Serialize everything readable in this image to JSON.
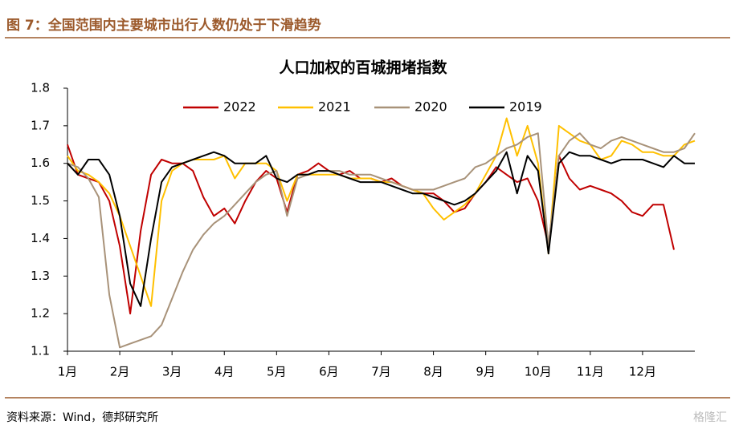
{
  "header": {
    "title": "图 7：全国范围内主要城市出行人数仍处于下滑趋势"
  },
  "chart_data": {
    "type": "line",
    "title": "人口加权的百城拥堵指数",
    "x": [
      0,
      0.2,
      0.4,
      0.6,
      0.8,
      1,
      1.2,
      1.4,
      1.6,
      1.8,
      2,
      2.2,
      2.4,
      2.6,
      2.8,
      3,
      3.2,
      3.4,
      3.6,
      3.8,
      4,
      4.2,
      4.4,
      4.6,
      4.8,
      5,
      5.2,
      5.4,
      5.6,
      5.8,
      6,
      6.2,
      6.4,
      6.6,
      6.8,
      7,
      7.2,
      7.4,
      7.6,
      7.8,
      8,
      8.2,
      8.4,
      8.6,
      8.8,
      9,
      9.2,
      9.4,
      9.6,
      9.8,
      10,
      10.2,
      10.4,
      10.6,
      10.8,
      11,
      11.2,
      11.4,
      11.6,
      11.8,
      12
    ],
    "xlim": [
      0,
      12
    ],
    "xticks": [
      {
        "value": 0,
        "label": "1月"
      },
      {
        "value": 1,
        "label": "2月"
      },
      {
        "value": 2,
        "label": "3月"
      },
      {
        "value": 3,
        "label": "4月"
      },
      {
        "value": 4,
        "label": "5月"
      },
      {
        "value": 5,
        "label": "6月"
      },
      {
        "value": 6,
        "label": "7月"
      },
      {
        "value": 7,
        "label": "8月"
      },
      {
        "value": 8,
        "label": "9月"
      },
      {
        "value": 9,
        "label": "10月"
      },
      {
        "value": 10,
        "label": "11月"
      },
      {
        "value": 11,
        "label": "12月"
      }
    ],
    "ylim": [
      1.1,
      1.8
    ],
    "yticks": [
      1.1,
      1.2,
      1.3,
      1.4,
      1.5,
      1.6,
      1.7,
      1.8
    ],
    "series": [
      {
        "name": "2022",
        "color": "#c00000",
        "values": [
          1.65,
          1.57,
          1.56,
          1.55,
          1.5,
          1.38,
          1.2,
          1.42,
          1.57,
          1.61,
          1.6,
          1.6,
          1.58,
          1.51,
          1.46,
          1.48,
          1.44,
          1.5,
          1.55,
          1.58,
          1.56,
          1.47,
          1.57,
          1.58,
          1.6,
          1.58,
          1.57,
          1.58,
          1.56,
          1.56,
          1.55,
          1.56,
          1.54,
          1.53,
          1.52,
          1.52,
          1.5,
          1.47,
          1.48,
          1.52,
          1.55,
          1.59,
          1.57,
          1.55,
          1.56,
          1.5,
          1.38,
          1.62,
          1.56,
          1.53,
          1.54,
          1.53,
          1.52,
          1.5,
          1.47,
          1.46,
          1.49,
          1.49,
          1.37,
          null,
          null
        ]
      },
      {
        "name": "2021",
        "color": "#ffc000",
        "values": [
          1.62,
          1.58,
          1.57,
          1.55,
          1.52,
          1.46,
          1.38,
          1.3,
          1.22,
          1.5,
          1.58,
          1.6,
          1.61,
          1.61,
          1.61,
          1.62,
          1.56,
          1.6,
          1.6,
          1.6,
          1.58,
          1.5,
          1.57,
          1.57,
          1.57,
          1.57,
          1.57,
          1.56,
          1.56,
          1.56,
          1.55,
          1.55,
          1.54,
          1.53,
          1.52,
          1.48,
          1.45,
          1.47,
          1.49,
          1.52,
          1.57,
          1.62,
          1.72,
          1.62,
          1.7,
          1.6,
          1.36,
          1.7,
          1.68,
          1.66,
          1.65,
          1.61,
          1.62,
          1.66,
          1.65,
          1.63,
          1.63,
          1.62,
          1.62,
          1.65,
          1.66
        ]
      },
      {
        "name": "2020",
        "color": "#a89279",
        "values": [
          1.6,
          1.59,
          1.56,
          1.51,
          1.25,
          1.11,
          1.12,
          1.13,
          1.14,
          1.17,
          1.24,
          1.31,
          1.37,
          1.41,
          1.44,
          1.46,
          1.49,
          1.52,
          1.55,
          1.57,
          1.58,
          1.46,
          1.56,
          1.57,
          1.58,
          1.58,
          1.58,
          1.57,
          1.57,
          1.57,
          1.56,
          1.55,
          1.54,
          1.53,
          1.53,
          1.53,
          1.54,
          1.55,
          1.56,
          1.59,
          1.6,
          1.62,
          1.64,
          1.65,
          1.67,
          1.68,
          1.38,
          1.62,
          1.66,
          1.68,
          1.65,
          1.64,
          1.66,
          1.67,
          1.66,
          1.65,
          1.64,
          1.63,
          1.63,
          1.64,
          1.68
        ]
      },
      {
        "name": "2019",
        "color": "#000000",
        "values": [
          1.6,
          1.57,
          1.61,
          1.61,
          1.57,
          1.46,
          1.28,
          1.22,
          1.4,
          1.55,
          1.59,
          1.6,
          1.61,
          1.62,
          1.63,
          1.62,
          1.6,
          1.6,
          1.6,
          1.62,
          1.56,
          1.55,
          1.57,
          1.57,
          1.58,
          1.58,
          1.57,
          1.56,
          1.55,
          1.55,
          1.55,
          1.54,
          1.53,
          1.52,
          1.52,
          1.51,
          1.5,
          1.49,
          1.5,
          1.52,
          1.55,
          1.58,
          1.63,
          1.52,
          1.62,
          1.58,
          1.36,
          1.6,
          1.63,
          1.62,
          1.62,
          1.61,
          1.6,
          1.61,
          1.61,
          1.61,
          1.6,
          1.59,
          1.62,
          1.6,
          1.6
        ]
      }
    ]
  },
  "footer": {
    "source": "资料来源：Wind，德邦研究所",
    "watermark": "格隆汇"
  }
}
